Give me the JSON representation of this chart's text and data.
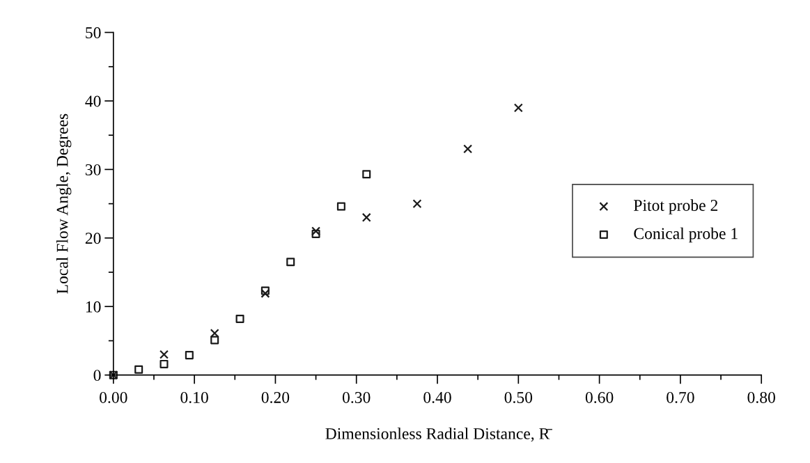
{
  "chart_data": {
    "type": "scatter",
    "xlabel": "Dimensionless Radial Distance, R̄",
    "ylabel": "Local Flow Angle, Degrees",
    "series": [
      {
        "name": "Pitot probe 2",
        "color": "#1a1a1a",
        "marker": "cross",
        "x": [
          0,
          0.0625,
          0.125,
          0.1875,
          0.25,
          0.3125,
          0.375,
          0.4375,
          0.5
        ],
        "values": [
          0,
          3.0,
          6.1,
          11.9,
          21.0,
          23.0,
          25.0,
          33.0,
          39.0
        ]
      },
      {
        "name": "Conical probe 1",
        "color": "#1a1a1a",
        "marker": "square",
        "x": [
          0,
          0.03125,
          0.0625,
          0.09375,
          0.125,
          0.15625,
          0.1875,
          0.21875,
          0.25,
          0.28125,
          0.3125
        ],
        "values": [
          0,
          0.8,
          1.6,
          2.9,
          5.1,
          8.2,
          12.3,
          16.5,
          20.6,
          24.6,
          29.3
        ]
      }
    ],
    "xlim": [
      0,
      0.8
    ],
    "xticks": [
      {
        "value": 0,
        "label": "0.00"
      },
      {
        "value": 0.1,
        "label": "0.10"
      },
      {
        "value": 0.2,
        "label": "0.20"
      },
      {
        "value": 0.3,
        "label": "0.30"
      },
      {
        "value": 0.4,
        "label": "0.40"
      },
      {
        "value": 0.5,
        "label": "0.50"
      },
      {
        "value": 0.6,
        "label": "0.60"
      },
      {
        "value": 0.7,
        "label": "0.70"
      },
      {
        "value": 0.8,
        "label": "0.80"
      }
    ],
    "ylim": [
      0,
      50
    ],
    "yticks": [
      0,
      10,
      20,
      30,
      40,
      50
    ],
    "grid": false,
    "legend": "right"
  }
}
